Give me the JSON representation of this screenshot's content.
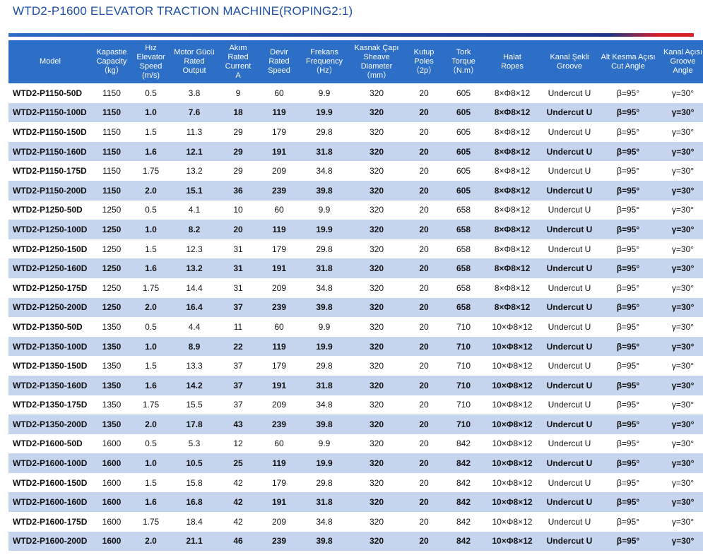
{
  "title": "WTD2-P1600 ELEVATOR TRACTION MACHINE(ROPING2:1)",
  "columns": [
    {
      "key": "model",
      "lines": [
        "Model"
      ]
    },
    {
      "key": "capacity",
      "lines": [
        "Kapastie",
        "Capacity",
        "（kg）"
      ]
    },
    {
      "key": "speed",
      "lines": [
        "Hız",
        "Elevator",
        "Speed",
        "(m/s)"
      ]
    },
    {
      "key": "power",
      "lines": [
        "Motor Gücü",
        "Rated",
        "Output"
      ]
    },
    {
      "key": "current",
      "lines": [
        "Akım",
        "Rated",
        "Current",
        "A"
      ]
    },
    {
      "key": "rpm",
      "lines": [
        "Devir",
        "Rated",
        "Speed"
      ]
    },
    {
      "key": "frequency",
      "lines": [
        "Frekans",
        "Frequency",
        "（Hz）"
      ]
    },
    {
      "key": "sheave",
      "lines": [
        "Kasnak Çapı",
        "Sheave",
        "Diameter",
        "（mm）"
      ]
    },
    {
      "key": "poles",
      "lines": [
        "Kutup",
        "Poles",
        "（2p）"
      ]
    },
    {
      "key": "torque",
      "lines": [
        "Tork",
        "Torque",
        "（N.m）"
      ]
    },
    {
      "key": "ropes",
      "lines": [
        "Halat",
        "Ropes"
      ]
    },
    {
      "key": "groove",
      "lines": [
        "Kanal Şekli",
        "Groove"
      ]
    },
    {
      "key": "cut_angle",
      "lines": [
        "Alt Kesma Açısı",
        "Cut Angle"
      ]
    },
    {
      "key": "groove_angle",
      "lines": [
        "Kanal Açısı",
        "Groove",
        "Angle"
      ]
    }
  ],
  "rows": [
    [
      "WTD2-P1150-50D",
      "1150",
      "0.5",
      "3.8",
      "9",
      "60",
      "9.9",
      "320",
      "20",
      "605",
      "8×Φ8×12",
      "Undercut U",
      "β=95°",
      "γ=30°"
    ],
    [
      "WTD2-P1150-100D",
      "1150",
      "1.0",
      "7.6",
      "18",
      "119",
      "19.9",
      "320",
      "20",
      "605",
      "8×Φ8×12",
      "Undercut U",
      "β=95°",
      "γ=30°"
    ],
    [
      "WTD2-P1150-150D",
      "1150",
      "1.5",
      "11.3",
      "29",
      "179",
      "29.8",
      "320",
      "20",
      "605",
      "8×Φ8×12",
      "Undercut U",
      "β=95°",
      "γ=30°"
    ],
    [
      "WTD2-P1150-160D",
      "1150",
      "1.6",
      "12.1",
      "29",
      "191",
      "31.8",
      "320",
      "20",
      "605",
      "8×Φ8×12",
      "Undercut U",
      "β=95°",
      "γ=30°"
    ],
    [
      "WTD2-P1150-175D",
      "1150",
      "1.75",
      "13.2",
      "29",
      "209",
      "34.8",
      "320",
      "20",
      "605",
      "8×Φ8×12",
      "Undercut U",
      "β=95°",
      "γ=30°"
    ],
    [
      "WTD2-P1150-200D",
      "1150",
      "2.0",
      "15.1",
      "36",
      "239",
      "39.8",
      "320",
      "20",
      "605",
      "8×Φ8×12",
      "Undercut U",
      "β=95°",
      "γ=30°"
    ],
    [
      "WTD2-P1250-50D",
      "1250",
      "0.5",
      "4.1",
      "10",
      "60",
      "9.9",
      "320",
      "20",
      "658",
      "8×Φ8×12",
      "Undercut U",
      "β=95°",
      "γ=30°"
    ],
    [
      "WTD2-P1250-100D",
      "1250",
      "1.0",
      "8.2",
      "20",
      "119",
      "19.9",
      "320",
      "20",
      "658",
      "8×Φ8×12",
      "Undercut U",
      "β=95°",
      "γ=30°"
    ],
    [
      "WTD2-P1250-150D",
      "1250",
      "1.5",
      "12.3",
      "31",
      "179",
      "29.8",
      "320",
      "20",
      "658",
      "8×Φ8×12",
      "Undercut U",
      "β=95°",
      "γ=30°"
    ],
    [
      "WTD2-P1250-160D",
      "1250",
      "1.6",
      "13.2",
      "31",
      "191",
      "31.8",
      "320",
      "20",
      "658",
      "8×Φ8×12",
      "Undercut U",
      "β=95°",
      "γ=30°"
    ],
    [
      "WTD2-P1250-175D",
      "1250",
      "1.75",
      "14.4",
      "31",
      "209",
      "34.8",
      "320",
      "20",
      "658",
      "8×Φ8×12",
      "Undercut U",
      "β=95°",
      "γ=30°"
    ],
    [
      "WTD2-P1250-200D",
      "1250",
      "2.0",
      "16.4",
      "37",
      "239",
      "39.8",
      "320",
      "20",
      "658",
      "8×Φ8×12",
      "Undercut U",
      "β=95°",
      "γ=30°"
    ],
    [
      "WTD2-P1350-50D",
      "1350",
      "0.5",
      "4.4",
      "11",
      "60",
      "9.9",
      "320",
      "20",
      "710",
      "10×Φ8×12",
      "Undercut U",
      "β=95°",
      "γ=30°"
    ],
    [
      "WTD2-P1350-100D",
      "1350",
      "1.0",
      "8.9",
      "22",
      "119",
      "19.9",
      "320",
      "20",
      "710",
      "10×Φ8×12",
      "Undercut U",
      "β=95°",
      "γ=30°"
    ],
    [
      "WTD2-P1350-150D",
      "1350",
      "1.5",
      "13.3",
      "37",
      "179",
      "29.8",
      "320",
      "20",
      "710",
      "10×Φ8×12",
      "Undercut U",
      "β=95°",
      "γ=30°"
    ],
    [
      "WTD2-P1350-160D",
      "1350",
      "1.6",
      "14.2",
      "37",
      "191",
      "31.8",
      "320",
      "20",
      "710",
      "10×Φ8×12",
      "Undercut U",
      "β=95°",
      "γ=30°"
    ],
    [
      "WTD2-P1350-175D",
      "1350",
      "1.75",
      "15.5",
      "37",
      "209",
      "34.8",
      "320",
      "20",
      "710",
      "10×Φ8×12",
      "Undercut U",
      "β=95°",
      "γ=30°"
    ],
    [
      "WTD2-P1350-200D",
      "1350",
      "2.0",
      "17.8",
      "43",
      "239",
      "39.8",
      "320",
      "20",
      "710",
      "10×Φ8×12",
      "Undercut U",
      "β=95°",
      "γ=30°"
    ],
    [
      "WTD2-P1600-50D",
      "1600",
      "0.5",
      "5.3",
      "12",
      "60",
      "9.9",
      "320",
      "20",
      "842",
      "10×Φ8×12",
      "Undercut U",
      "β=95°",
      "γ=30°"
    ],
    [
      "WTD2-P1600-100D",
      "1600",
      "1.0",
      "10.5",
      "25",
      "119",
      "19.9",
      "320",
      "20",
      "842",
      "10×Φ8×12",
      "Undercut U",
      "β=95°",
      "γ=30°"
    ],
    [
      "WTD2-P1600-150D",
      "1600",
      "1.5",
      "15.8",
      "42",
      "179",
      "29.8",
      "320",
      "20",
      "842",
      "10×Φ8×12",
      "Undercut U",
      "β=95°",
      "γ=30°"
    ],
    [
      "WTD2-P1600-160D",
      "1600",
      "1.6",
      "16.8",
      "42",
      "191",
      "31.8",
      "320",
      "20",
      "842",
      "10×Φ8×12",
      "Undercut U",
      "β=95°",
      "γ=30°"
    ],
    [
      "WTD2-P1600-175D",
      "1600",
      "1.75",
      "18.4",
      "42",
      "209",
      "34.8",
      "320",
      "20",
      "842",
      "10×Φ8×12",
      "Undercut U",
      "β=95°",
      "γ=30°"
    ],
    [
      "WTD2-P1600-200D",
      "1600",
      "2.0",
      "21.1",
      "46",
      "239",
      "39.8",
      "320",
      "20",
      "842",
      "10×Φ8×12",
      "Undercut U",
      "β=95°",
      "γ=30°"
    ]
  ],
  "colors": {
    "title": "#1f4fa8",
    "header_bg": "#2d6ec6",
    "stripe": "#c5d5ee",
    "accent_red": "#d92128"
  }
}
